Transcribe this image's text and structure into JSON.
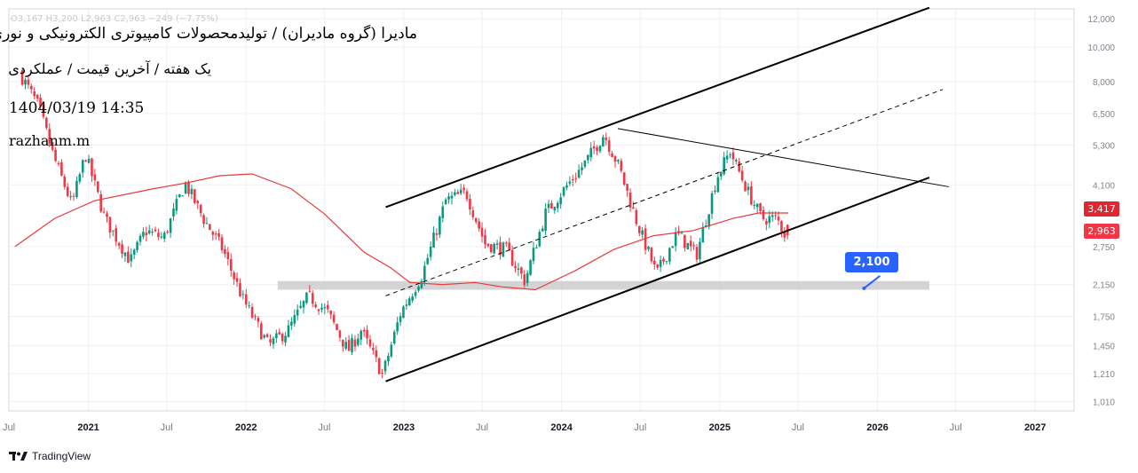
{
  "header": {
    "title": "مادیرا (گروه مادیران) / تولیدمحصولات کامپیوتری الکترونیکی و نوری",
    "subtitle": "یک هفته / آخرین قیمت / عملکردی",
    "datetime": "1404/03/19 14:35",
    "author": "razhanm.m"
  },
  "ohlc_legend": "O3,167  H3,200  L2,963  C2,963  −249 (−7.75%)",
  "footer": {
    "brand": "TradingView"
  },
  "colors": {
    "up": "#089981",
    "down": "#f23645",
    "ma": "#e83a3a",
    "channel": "#000000",
    "zone": "#c9c9cc",
    "callout": "#2962ff",
    "grid": "#eef0f3"
  },
  "chart_data": {
    "type": "candlestick",
    "title": "",
    "timeframe": "1W",
    "xlabel": "",
    "ylabel": "",
    "y_scale": "log",
    "ylim": [
      950,
      12800
    ],
    "xlim": [
      "2020-07-01",
      "2027-04-01"
    ],
    "grid": true,
    "x_ticks": [
      "Jul",
      "2021",
      "Jul",
      "2022",
      "Jul",
      "2023",
      "Jul",
      "2024",
      "Jul",
      "2025",
      "Jul",
      "2026",
      "Jul",
      "2027"
    ],
    "x_tick_dates": [
      "2020-07-01",
      "2021-01-01",
      "2021-07-01",
      "2022-01-01",
      "2022-07-01",
      "2023-01-01",
      "2023-07-01",
      "2024-01-01",
      "2024-07-01",
      "2025-01-01",
      "2025-07-01",
      "2026-01-01",
      "2026-07-01",
      "2027-01-01"
    ],
    "y_ticks": [
      12000,
      10000,
      8000,
      6500,
      5300,
      4100,
      2750,
      2150,
      1750,
      1450,
      1210,
      1010
    ],
    "y_tick_labels": [
      "12,000",
      "10,000",
      "8,000",
      "6,500",
      "5,300",
      "4,100",
      "2,750",
      "2,150",
      "1,750",
      "1,450",
      "1,210",
      "1,010"
    ],
    "price_path": [
      [
        "2020-08-01",
        8500
      ],
      [
        "2020-09-15",
        6800
      ],
      [
        "2020-10-20",
        4900
      ],
      [
        "2020-12-01",
        3600
      ],
      [
        "2021-01-01",
        5000
      ],
      [
        "2021-02-15",
        3300
      ],
      [
        "2021-04-15",
        2500
      ],
      [
        "2021-05-20",
        3050
      ],
      [
        "2021-07-01",
        2900
      ],
      [
        "2021-08-20",
        4150
      ],
      [
        "2021-10-01",
        3300
      ],
      [
        "2021-11-15",
        2700
      ],
      [
        "2022-01-01",
        1950
      ],
      [
        "2022-03-01",
        1450
      ],
      [
        "2022-04-15",
        1600
      ],
      [
        "2022-06-01",
        2000
      ],
      [
        "2022-07-15",
        1800
      ],
      [
        "2022-09-01",
        1400
      ],
      [
        "2022-10-01",
        1600
      ],
      [
        "2022-11-20",
        1200
      ],
      [
        "2023-01-01",
        1800
      ],
      [
        "2023-02-20",
        2300
      ],
      [
        "2023-04-15",
        3700
      ],
      [
        "2023-06-01",
        3900
      ],
      [
        "2023-07-15",
        2800
      ],
      [
        "2023-09-01",
        2700
      ],
      [
        "2023-10-15",
        2200
      ],
      [
        "2023-12-01",
        3400
      ],
      [
        "2024-01-15",
        4000
      ],
      [
        "2024-03-01",
        4700
      ],
      [
        "2024-04-15",
        5700
      ],
      [
        "2024-05-20",
        4600
      ],
      [
        "2024-07-01",
        3200
      ],
      [
        "2024-08-15",
        2300
      ],
      [
        "2024-10-01",
        3000
      ],
      [
        "2024-11-15",
        2600
      ],
      [
        "2025-01-01",
        4300
      ],
      [
        "2025-02-01",
        5100
      ],
      [
        "2025-03-15",
        3900
      ],
      [
        "2025-04-15",
        3300
      ],
      [
        "2025-05-20",
        3300
      ],
      [
        "2025-06-09",
        2963
      ]
    ],
    "moving_average": [
      [
        "2020-07-15",
        2750
      ],
      [
        "2020-10-15",
        3300
      ],
      [
        "2021-01-15",
        3700
      ],
      [
        "2021-06-01",
        4000
      ],
      [
        "2021-08-15",
        4150
      ],
      [
        "2021-11-01",
        4350
      ],
      [
        "2022-01-15",
        4400
      ],
      [
        "2022-04-15",
        4000
      ],
      [
        "2022-07-01",
        3400
      ],
      [
        "2022-10-01",
        2650
      ],
      [
        "2022-12-01",
        2400
      ],
      [
        "2023-01-15",
        2180
      ],
      [
        "2023-04-01",
        2150
      ],
      [
        "2023-06-15",
        2180
      ],
      [
        "2023-08-15",
        2120
      ],
      [
        "2023-11-01",
        2080
      ],
      [
        "2024-02-01",
        2350
      ],
      [
        "2024-05-01",
        2700
      ],
      [
        "2024-08-01",
        2950
      ],
      [
        "2024-11-01",
        3050
      ],
      [
        "2025-02-01",
        3300
      ],
      [
        "2025-04-01",
        3417
      ],
      [
        "2025-06-09",
        3417
      ]
    ],
    "last_price": 2963,
    "last_price_label": "2,963",
    "ma_last": 3417,
    "ma_last_label": "3,417",
    "drawings": {
      "channel_upper": [
        [
          "2022-11-20",
          3550
        ],
        [
          "2026-05-01",
          12900
        ]
      ],
      "channel_lower": [
        [
          "2022-11-20",
          1150
        ],
        [
          "2026-05-01",
          4300
        ]
      ],
      "channel_mid": [
        [
          "2022-11-20",
          2000
        ],
        [
          "2026-06-01",
          7600
        ]
      ],
      "trend_from_peak": [
        [
          "2024-05-10",
          5900
        ],
        [
          "2026-06-15",
          4050
        ]
      ],
      "support_zone": {
        "from": "2022-03-15",
        "to": "2026-05-01",
        "y_low": 2080,
        "y_high": 2200
      },
      "callout": {
        "label": "2,100",
        "anchor": [
          "2025-12-01",
          2100
        ]
      }
    }
  }
}
